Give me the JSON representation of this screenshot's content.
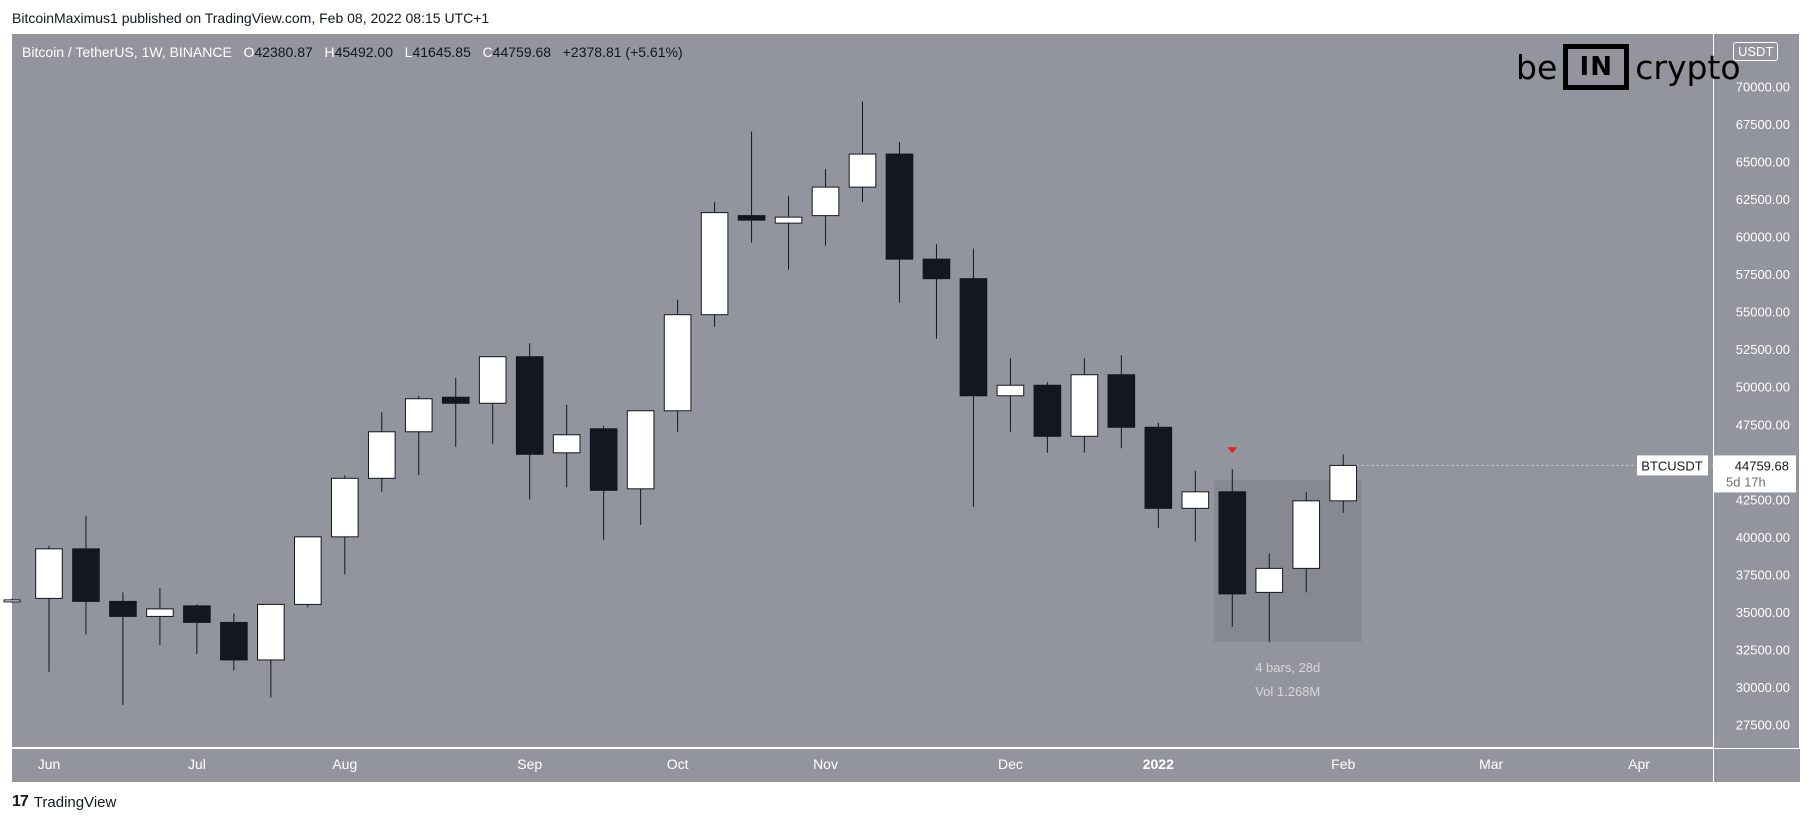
{
  "header": {
    "publish_line": "BitcoinMaximus1 published on TradingView.com, Feb 08, 2022 08:15 UTC+1"
  },
  "legend": {
    "symbol": "Bitcoin / TetherUS, 1W, BINANCE",
    "o_label": "O",
    "o_value": "42380.87",
    "h_label": "H",
    "h_value": "45492.00",
    "l_label": "L",
    "l_value": "41645.85",
    "c_label": "C",
    "c_value": "44759.68",
    "change": "+2378.81 (+5.61%)"
  },
  "logo": {
    "left": "be",
    "box": "IN",
    "right": "crypto"
  },
  "currency_badge": "USDT",
  "price_tag": {
    "name": "BTCUSDT",
    "value": "44759.68",
    "countdown": "5d 17h"
  },
  "measure": {
    "bars": "4 bars, 28d",
    "volume": "Vol 1.268M"
  },
  "footer": {
    "brand": "TradingView",
    "glyph": "17"
  },
  "colors": {
    "background": "#93959e",
    "bull": "#ffffff",
    "bear": "#131722",
    "marker": "#e5202a",
    "measure_box": "#7e8088"
  },
  "chart_data": {
    "type": "candlestick",
    "title": "Bitcoin / TetherUS, 1W, BINANCE",
    "ylim": [
      26000,
      73500
    ],
    "y_ticks": [
      "27500.00",
      "30000.00",
      "32500.00",
      "35000.00",
      "37500.00",
      "40000.00",
      "42500.00",
      "45000.00",
      "47500.00",
      "50000.00",
      "52500.00",
      "55000.00",
      "57500.00",
      "60000.00",
      "62500.00",
      "65000.00",
      "67500.00",
      "70000.00"
    ],
    "x_ticks": [
      {
        "label": "Jun",
        "index": 1
      },
      {
        "label": "Jul",
        "index": 5
      },
      {
        "label": "Aug",
        "index": 9
      },
      {
        "label": "Sep",
        "index": 14
      },
      {
        "label": "Oct",
        "index": 18
      },
      {
        "label": "Nov",
        "index": 22
      },
      {
        "label": "Dec",
        "index": 27
      },
      {
        "label": "2022",
        "index": 31,
        "bold": true
      },
      {
        "label": "Feb",
        "index": 36
      },
      {
        "label": "Mar",
        "index": 40
      },
      {
        "label": "Apr",
        "index": 44
      }
    ],
    "x_range": [
      0,
      46
    ],
    "grid": false,
    "candles": [
      {
        "o": 35800,
        "h": 35900,
        "l": 35600,
        "c": 35800
      },
      {
        "o": 35900,
        "h": 39400,
        "l": 31000,
        "c": 39200
      },
      {
        "o": 39200,
        "h": 41400,
        "l": 33500,
        "c": 35700
      },
      {
        "o": 35700,
        "h": 36300,
        "l": 28800,
        "c": 34700
      },
      {
        "o": 34700,
        "h": 36600,
        "l": 32800,
        "c": 35200
      },
      {
        "o": 35400,
        "h": 35500,
        "l": 32200,
        "c": 34300
      },
      {
        "o": 34300,
        "h": 34900,
        "l": 31100,
        "c": 31800
      },
      {
        "o": 31800,
        "h": 35500,
        "l": 29300,
        "c": 35500
      },
      {
        "o": 35500,
        "h": 40000,
        "l": 35300,
        "c": 40000
      },
      {
        "o": 40000,
        "h": 44100,
        "l": 37500,
        "c": 43900
      },
      {
        "o": 43900,
        "h": 48300,
        "l": 43000,
        "c": 47000
      },
      {
        "o": 47000,
        "h": 49400,
        "l": 44100,
        "c": 49200
      },
      {
        "o": 49300,
        "h": 50600,
        "l": 46000,
        "c": 48900
      },
      {
        "o": 48900,
        "h": 51800,
        "l": 46200,
        "c": 52000
      },
      {
        "o": 52000,
        "h": 52900,
        "l": 42500,
        "c": 45500
      },
      {
        "o": 45600,
        "h": 48800,
        "l": 43300,
        "c": 46800
      },
      {
        "o": 47200,
        "h": 47400,
        "l": 39800,
        "c": 43100
      },
      {
        "o": 43200,
        "h": 48400,
        "l": 40800,
        "c": 48400
      },
      {
        "o": 48400,
        "h": 55800,
        "l": 47000,
        "c": 54800
      },
      {
        "o": 54800,
        "h": 62300,
        "l": 54000,
        "c": 61600
      },
      {
        "o": 61400,
        "h": 67000,
        "l": 59600,
        "c": 61100
      },
      {
        "o": 60900,
        "h": 62700,
        "l": 57800,
        "c": 61300
      },
      {
        "o": 61400,
        "h": 64500,
        "l": 59400,
        "c": 63300
      },
      {
        "o": 63300,
        "h": 69000,
        "l": 62300,
        "c": 65500
      },
      {
        "o": 65500,
        "h": 66300,
        "l": 55600,
        "c": 58500
      },
      {
        "o": 58500,
        "h": 59500,
        "l": 53200,
        "c": 57200
      },
      {
        "o": 57200,
        "h": 59200,
        "l": 42000,
        "c": 49400
      },
      {
        "o": 49400,
        "h": 51900,
        "l": 47000,
        "c": 50100
      },
      {
        "o": 50100,
        "h": 50300,
        "l": 45600,
        "c": 46700
      },
      {
        "o": 46700,
        "h": 51900,
        "l": 45600,
        "c": 50800
      },
      {
        "o": 50800,
        "h": 52100,
        "l": 45900,
        "c": 47300
      },
      {
        "o": 47300,
        "h": 47600,
        "l": 40600,
        "c": 41900
      },
      {
        "o": 41900,
        "h": 44400,
        "l": 39700,
        "c": 43000
      },
      {
        "o": 43000,
        "h": 44500,
        "l": 34000,
        "c": 36200
      },
      {
        "o": 36300,
        "h": 38900,
        "l": 33000,
        "c": 37900
      },
      {
        "o": 37900,
        "h": 43000,
        "l": 36300,
        "c": 42400
      },
      {
        "o": 42400,
        "h": 45500,
        "l": 41600,
        "c": 44760
      }
    ],
    "last_price": 44759.68,
    "measure_box": {
      "start_index": 32.5,
      "end_index": 36.5,
      "y_low": 33000,
      "y_high": 43800
    },
    "down_marker": {
      "index": 33,
      "price": 45500
    }
  }
}
